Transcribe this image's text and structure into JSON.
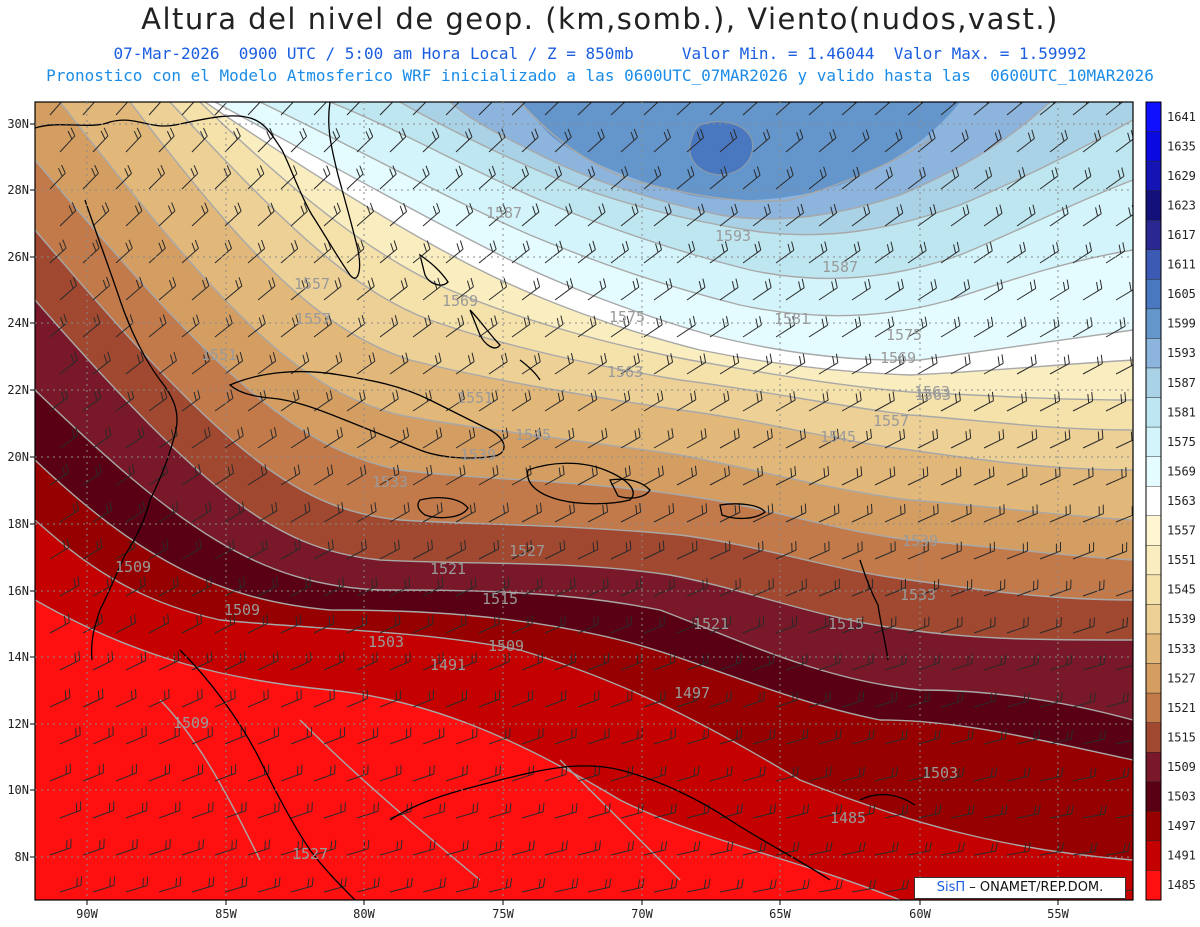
{
  "header": {
    "title": "Altura del nivel de geop. (km,somb.), Viento(nudos,vast.)",
    "subtitle_line1": "07-Mar-2026  0900 UTC / 5:00 am Hora Local / Z = 850mb     Valor Min. = 1.46044  Valor Max. = 1.59992",
    "subtitle_line2": "Pronostico con el Modelo Atmosferico WRF inicializado a las 0600UTC_07MAR2026 y valido hasta las  0600UTC_10MAR2026"
  },
  "map": {
    "lon_labels": [
      "90W",
      "85W",
      "80W",
      "75W",
      "70W",
      "65W",
      "60W",
      "55W"
    ],
    "lat_labels": [
      "30N",
      "28N",
      "26N",
      "24N",
      "22N",
      "20N",
      "18N",
      "16N",
      "14N",
      "12N",
      "10N",
      "8N"
    ],
    "contour_labels": [
      "1587",
      "1593",
      "1587",
      "1581",
      "1575",
      "1575",
      "1569",
      "1569",
      "1563",
      "1563",
      "1557",
      "1557",
      "1551",
      "1551",
      "1545",
      "1545",
      "1539",
      "1539",
      "1533",
      "1533",
      "1527",
      "1521",
      "1521",
      "1515",
      "1515",
      "1509",
      "1509",
      "1503",
      "1509",
      "1497",
      "1491",
      "1509",
      "1503",
      "1485",
      "1527",
      "1557",
      "1563"
    ],
    "colors": {
      "ridge_blue": "#5a8cc6",
      "ice_blue": "#ccf4fb",
      "neutral": "#ffffff",
      "tan": "#d9b070",
      "red": "#ff1010",
      "dark_red": "#6a0010"
    }
  },
  "legend": {
    "values": [
      "1641",
      "1635",
      "1629",
      "1623",
      "1617",
      "1611",
      "1605",
      "1599",
      "1593",
      "1587",
      "1581",
      "1575",
      "1569",
      "1563",
      "1557",
      "1551",
      "1545",
      "1539",
      "1533",
      "1527",
      "1521",
      "1515",
      "1509",
      "1503",
      "1497",
      "1491",
      "1485"
    ],
    "colors": [
      "#1010ff",
      "#0a0ae0",
      "#1414b4",
      "#14107a",
      "#282890",
      "#3c5ab4",
      "#4a78c0",
      "#6496cc",
      "#8cb4dc",
      "#aad2e6",
      "#bee6f0",
      "#d2f4fa",
      "#e4fcff",
      "#ffffff",
      "#fff5d2",
      "#faeec0",
      "#f5e1aa",
      "#ecd096",
      "#e2b87a",
      "#d49e62",
      "#c27a4a",
      "#a04830",
      "#781828",
      "#5a0014",
      "#960000",
      "#c40000",
      "#ff1010"
    ]
  },
  "credit": {
    "brand": "SisΠ",
    "text": " – ONAMET/REP.DOM."
  }
}
